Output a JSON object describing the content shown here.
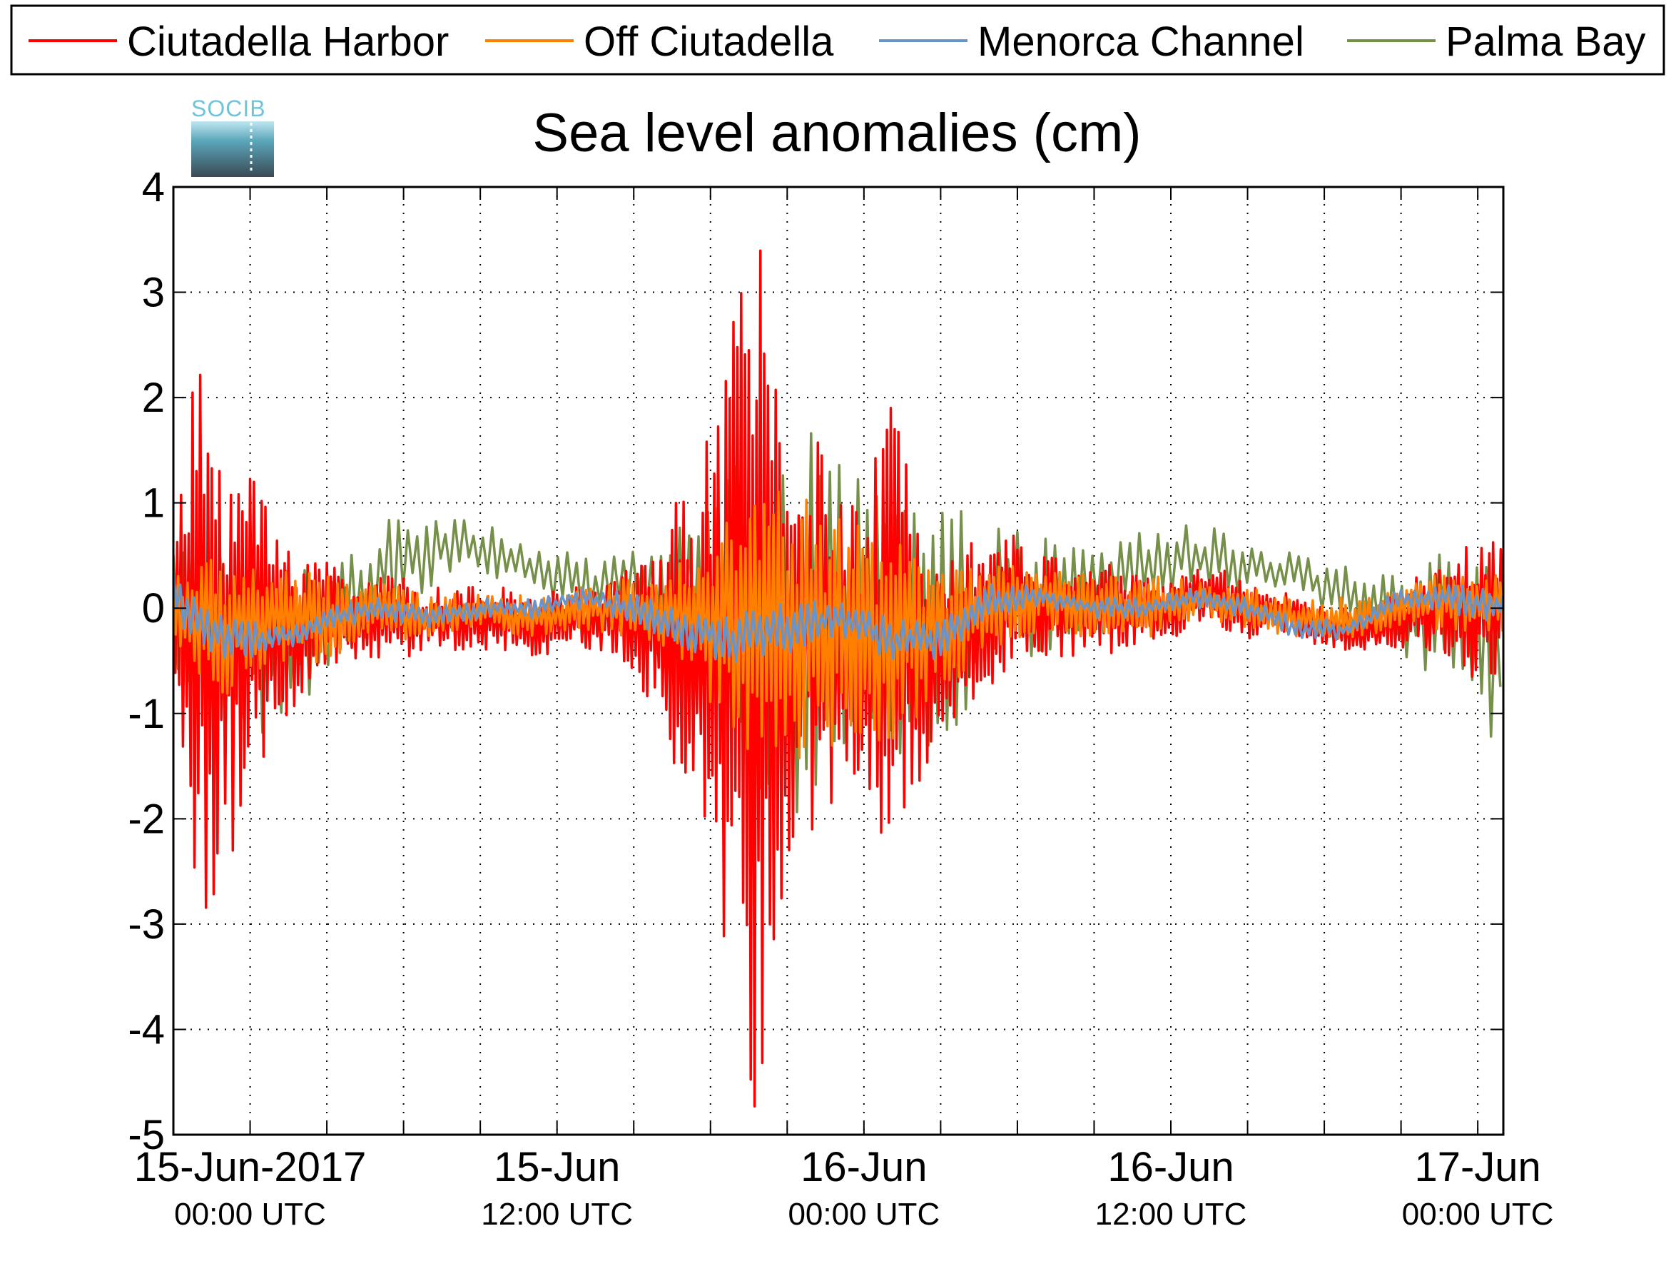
{
  "chart_data": {
    "type": "line",
    "title": "Sea level anomalies (cm)",
    "logo": "SOCIB",
    "ylim": [
      -5,
      4
    ],
    "yticks": [
      4,
      3,
      2,
      1,
      0,
      -1,
      -2,
      -3,
      -4,
      -5
    ],
    "ytick_labels": [
      "4",
      "3",
      "2",
      "1",
      "0",
      "-1",
      "-2",
      "-3",
      "-4",
      "-5"
    ],
    "x_start": "2017-06-14T21:00:00Z",
    "x_end": "2017-06-17T01:00:00Z",
    "xticks_major": [
      {
        "time": "2017-06-15T00:00:00Z",
        "date_label": "15-Jun-2017",
        "time_label": "00:00 UTC"
      },
      {
        "time": "2017-06-15T12:00:00Z",
        "date_label": "15-Jun",
        "time_label": "12:00 UTC"
      },
      {
        "time": "2017-06-16T00:00:00Z",
        "date_label": "16-Jun",
        "time_label": "00:00 UTC"
      },
      {
        "time": "2017-06-16T12:00:00Z",
        "date_label": "16-Jun",
        "time_label": "12:00 UTC"
      },
      {
        "time": "2017-06-17T00:00:00Z",
        "date_label": "17-Jun",
        "time_label": "00:00 UTC"
      }
    ],
    "grid": true,
    "legend_position": "top",
    "series": [
      {
        "name": "Ciutadella Harbor",
        "color": "#ff0000",
        "x": [
          "2017-06-14T21:00:00Z",
          "2017-06-14T22:00:00Z",
          "2017-06-14T23:00:00Z",
          "2017-06-15T00:00:00Z",
          "2017-06-15T01:00:00Z",
          "2017-06-15T02:00:00Z",
          "2017-06-15T03:00:00Z",
          "2017-06-15T04:00:00Z",
          "2017-06-15T05:00:00Z",
          "2017-06-15T06:00:00Z",
          "2017-06-15T07:00:00Z",
          "2017-06-15T08:00:00Z",
          "2017-06-15T09:00:00Z",
          "2017-06-15T10:00:00Z",
          "2017-06-15T11:00:00Z",
          "2017-06-15T12:00:00Z",
          "2017-06-15T13:00:00Z",
          "2017-06-15T14:00:00Z",
          "2017-06-15T15:00:00Z",
          "2017-06-15T16:00:00Z",
          "2017-06-15T17:00:00Z",
          "2017-06-15T18:00:00Z",
          "2017-06-15T19:00:00Z",
          "2017-06-15T20:00:00Z",
          "2017-06-15T21:00:00Z",
          "2017-06-15T22:00:00Z",
          "2017-06-15T23:00:00Z",
          "2017-06-16T00:00:00Z",
          "2017-06-16T01:00:00Z",
          "2017-06-16T02:00:00Z",
          "2017-06-16T03:00:00Z",
          "2017-06-16T04:00:00Z",
          "2017-06-16T05:00:00Z",
          "2017-06-16T06:00:00Z",
          "2017-06-16T07:00:00Z",
          "2017-06-16T08:00:00Z",
          "2017-06-16T09:00:00Z",
          "2017-06-16T10:00:00Z",
          "2017-06-16T11:00:00Z",
          "2017-06-16T12:00:00Z",
          "2017-06-16T13:00:00Z",
          "2017-06-16T14:00:00Z",
          "2017-06-16T15:00:00Z",
          "2017-06-16T16:00:00Z",
          "2017-06-16T17:00:00Z",
          "2017-06-16T18:00:00Z",
          "2017-06-16T19:00:00Z",
          "2017-06-16T20:00:00Z",
          "2017-06-16T21:00:00Z",
          "2017-06-16T22:00:00Z",
          "2017-06-16T23:00:00Z",
          "2017-06-17T00:00:00Z",
          "2017-06-17T01:00:00Z"
        ],
        "amplitude": [
          0.5,
          2.9,
          2.2,
          1.7,
          1.0,
          0.8,
          0.6,
          0.5,
          0.4,
          0.4,
          0.3,
          0.3,
          0.3,
          0.3,
          0.3,
          0.3,
          0.3,
          0.4,
          0.5,
          1.0,
          1.5,
          2.0,
          3.4,
          4.6,
          2.5,
          2.0,
          1.5,
          1.2,
          2.4,
          1.5,
          1.0,
          0.8,
          0.8,
          0.6,
          0.5,
          0.5,
          0.5,
          0.4,
          0.3,
          0.3,
          0.3,
          0.3,
          0.3,
          0.2,
          0.2,
          0.2,
          0.2,
          0.2,
          0.3,
          0.4,
          0.5,
          0.8,
          0.6
        ],
        "baseline": [
          0,
          -0.3,
          -0.3,
          -0.2,
          -0.2,
          -0.1,
          -0.1,
          -0.1,
          -0.1,
          -0.1,
          -0.1,
          -0.1,
          -0.1,
          -0.1,
          -0.2,
          -0.1,
          -0.1,
          -0.1,
          -0.1,
          -0.2,
          -0.3,
          -0.3,
          -0.5,
          -0.5,
          -0.3,
          -0.3,
          -0.3,
          -0.3,
          -0.3,
          -0.3,
          -0.2,
          -0.1,
          0,
          0.1,
          0,
          0,
          0,
          0,
          0,
          0,
          0.1,
          0.1,
          0,
          0,
          -0.1,
          -0.2,
          -0.2,
          -0.2,
          -0.1,
          0,
          0,
          0,
          0
        ]
      },
      {
        "name": "Off Ciutadella",
        "color": "#ff8000",
        "x": [
          "2017-06-14T21:00:00Z",
          "2017-06-14T23:00:00Z",
          "2017-06-15T01:00:00Z",
          "2017-06-15T03:00:00Z",
          "2017-06-15T05:00:00Z",
          "2017-06-15T07:00:00Z",
          "2017-06-15T09:00:00Z",
          "2017-06-15T11:00:00Z",
          "2017-06-15T13:00:00Z",
          "2017-06-15T15:00:00Z",
          "2017-06-15T17:00:00Z",
          "2017-06-15T19:00:00Z",
          "2017-06-15T21:00:00Z",
          "2017-06-15T23:00:00Z",
          "2017-06-16T01:00:00Z",
          "2017-06-16T03:00:00Z",
          "2017-06-16T05:00:00Z",
          "2017-06-16T07:00:00Z",
          "2017-06-16T09:00:00Z",
          "2017-06-16T11:00:00Z",
          "2017-06-16T13:00:00Z",
          "2017-06-16T15:00:00Z",
          "2017-06-16T17:00:00Z",
          "2017-06-16T19:00:00Z",
          "2017-06-16T21:00:00Z",
          "2017-06-16T23:00:00Z",
          "2017-06-17T01:00:00Z"
        ],
        "amplitude": [
          0.4,
          0.7,
          0.5,
          0.4,
          0.3,
          0.2,
          0.2,
          0.2,
          0.2,
          0.3,
          0.5,
          1.2,
          1.4,
          1.1,
          1.0,
          0.6,
          0.4,
          0.3,
          0.3,
          0.3,
          0.2,
          0.2,
          0.2,
          0.2,
          0.2,
          0.3,
          0.3
        ],
        "baseline": [
          0,
          -0.2,
          -0.1,
          -0.1,
          0,
          -0.1,
          0,
          -0.1,
          0,
          0,
          0,
          -0.1,
          -0.2,
          -0.2,
          -0.3,
          -0.2,
          0,
          0.1,
          0,
          0,
          0.1,
          0,
          -0.1,
          -0.1,
          0,
          0.1,
          0
        ]
      },
      {
        "name": "Menorca Channel",
        "color": "#6a93c8",
        "x": [
          "2017-06-14T21:00:00Z",
          "2017-06-14T23:00:00Z",
          "2017-06-15T01:00:00Z",
          "2017-06-15T03:00:00Z",
          "2017-06-15T05:00:00Z",
          "2017-06-15T07:00:00Z",
          "2017-06-15T09:00:00Z",
          "2017-06-15T11:00:00Z",
          "2017-06-15T13:00:00Z",
          "2017-06-15T15:00:00Z",
          "2017-06-15T17:00:00Z",
          "2017-06-15T19:00:00Z",
          "2017-06-15T21:00:00Z",
          "2017-06-15T23:00:00Z",
          "2017-06-16T01:00:00Z",
          "2017-06-16T03:00:00Z",
          "2017-06-16T05:00:00Z",
          "2017-06-16T07:00:00Z",
          "2017-06-16T09:00:00Z",
          "2017-06-16T11:00:00Z",
          "2017-06-16T13:00:00Z",
          "2017-06-16T15:00:00Z",
          "2017-06-16T17:00:00Z",
          "2017-06-16T19:00:00Z",
          "2017-06-16T21:00:00Z",
          "2017-06-16T23:00:00Z",
          "2017-06-17T01:00:00Z"
        ],
        "amplitude": [
          0.25,
          0.2,
          0.15,
          0.12,
          0.1,
          0.1,
          0.1,
          0.1,
          0.1,
          0.15,
          0.2,
          0.25,
          0.25,
          0.2,
          0.2,
          0.2,
          0.15,
          0.1,
          0.1,
          0.1,
          0.1,
          0.1,
          0.1,
          0.1,
          0.1,
          0.15,
          0.15
        ],
        "baseline": [
          0.1,
          -0.3,
          -0.3,
          -0.1,
          0,
          -0.1,
          0,
          0,
          0.1,
          0,
          -0.2,
          -0.3,
          -0.2,
          -0.1,
          -0.3,
          -0.3,
          0.1,
          0.1,
          0,
          0,
          0.1,
          0,
          -0.2,
          -0.2,
          0.1,
          0.1,
          0
        ]
      },
      {
        "name": "Palma Bay",
        "color": "#76904a",
        "x": [
          "2017-06-14T21:00:00Z",
          "2017-06-14T23:00:00Z",
          "2017-06-15T01:00:00Z",
          "2017-06-15T03:00:00Z",
          "2017-06-15T05:00:00Z",
          "2017-06-15T07:00:00Z",
          "2017-06-15T09:00:00Z",
          "2017-06-15T11:00:00Z",
          "2017-06-15T13:00:00Z",
          "2017-06-15T15:00:00Z",
          "2017-06-15T17:00:00Z",
          "2017-06-15T19:00:00Z",
          "2017-06-15T21:00:00Z",
          "2017-06-15T23:00:00Z",
          "2017-06-16T01:00:00Z",
          "2017-06-16T03:00:00Z",
          "2017-06-16T05:00:00Z",
          "2017-06-16T07:00:00Z",
          "2017-06-16T09:00:00Z",
          "2017-06-16T11:00:00Z",
          "2017-06-16T13:00:00Z",
          "2017-06-16T15:00:00Z",
          "2017-06-16T17:00:00Z",
          "2017-06-16T19:00:00Z",
          "2017-06-16T21:00:00Z",
          "2017-06-16T23:00:00Z",
          "2017-06-17T01:00:00Z"
        ],
        "amplitude": [
          0.9,
          1.0,
          0.8,
          0.6,
          0.5,
          0.4,
          0.3,
          0.2,
          0.3,
          0.4,
          0.9,
          1.5,
          1.9,
          1.8,
          1.6,
          1.2,
          0.7,
          0.6,
          0.4,
          0.4,
          0.3,
          0.3,
          0.2,
          0.3,
          0.4,
          0.8,
          0.8
        ],
        "baseline": [
          -0.2,
          -0.3,
          -0.4,
          -0.1,
          0.3,
          0.6,
          0.6,
          0.4,
          0.2,
          0.2,
          0.1,
          -0.1,
          -0.1,
          -0.3,
          -0.3,
          -0.2,
          0.1,
          0.1,
          0.2,
          0.4,
          0.5,
          0.4,
          0.3,
          0.1,
          -0.1,
          -0.2,
          -0.5
        ]
      }
    ],
    "peaks": {
      "Ciutadella Harbor": {
        "max": 3.5,
        "min": -4.8
      },
      "Palma Bay": {
        "max": 1.9,
        "min": -1.9
      }
    }
  }
}
